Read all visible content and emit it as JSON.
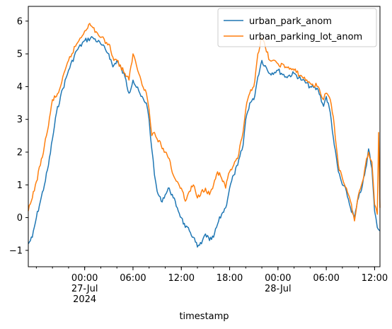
{
  "chart_data": {
    "type": "line",
    "title": "",
    "xlabel": "timestamp",
    "ylabel": "",
    "xlim": [
      "2024-07-26T17:00",
      "2024-07-28T12:40"
    ],
    "ylim": [
      -1.5,
      6.45
    ],
    "grid": false,
    "legend_position": "upper-right",
    "y_ticks": [
      -1,
      0,
      1,
      2,
      3,
      4,
      5,
      6
    ],
    "x_ticks": [
      {
        "t": "2024-07-27T00:00",
        "label": "00:00\n27-Jul\n2024"
      },
      {
        "t": "2024-07-27T06:00",
        "label": "06:00"
      },
      {
        "t": "2024-07-27T12:00",
        "label": "12:00"
      },
      {
        "t": "2024-07-27T18:00",
        "label": "18:00"
      },
      {
        "t": "2024-07-28T00:00",
        "label": "00:00\n28-Jul"
      },
      {
        "t": "2024-07-28T06:00",
        "label": "06:00"
      },
      {
        "t": "2024-07-28T12:00",
        "label": "12:00"
      }
    ],
    "series": [
      {
        "name": "urban_park_anom",
        "color": "#1f77b4",
        "points": [
          [
            "2024-07-26T17:00",
            -0.8
          ],
          [
            "2024-07-26T17:30",
            -0.6
          ],
          [
            "2024-07-26T18:00",
            0.0
          ],
          [
            "2024-07-26T18:30",
            0.5
          ],
          [
            "2024-07-26T19:00",
            1.0
          ],
          [
            "2024-07-26T19:30",
            1.6
          ],
          [
            "2024-07-26T20:00",
            2.4
          ],
          [
            "2024-07-26T20:30",
            3.2
          ],
          [
            "2024-07-26T21:00",
            3.7
          ],
          [
            "2024-07-26T22:00",
            4.5
          ],
          [
            "2024-07-26T23:00",
            5.1
          ],
          [
            "2024-07-27T00:00",
            5.4
          ],
          [
            "2024-07-27T01:00",
            5.5
          ],
          [
            "2024-07-27T02:00",
            5.3
          ],
          [
            "2024-07-27T03:00",
            5.0
          ],
          [
            "2024-07-27T03:30",
            4.6
          ],
          [
            "2024-07-27T04:00",
            4.8
          ],
          [
            "2024-07-27T05:00",
            4.3
          ],
          [
            "2024-07-27T05:30",
            3.8
          ],
          [
            "2024-07-27T06:00",
            4.2
          ],
          [
            "2024-07-27T07:00",
            3.7
          ],
          [
            "2024-07-27T07:40",
            3.5
          ],
          [
            "2024-07-27T08:00",
            3.0
          ],
          [
            "2024-07-27T08:20",
            2.1
          ],
          [
            "2024-07-27T08:40",
            1.3
          ],
          [
            "2024-07-27T09:00",
            0.8
          ],
          [
            "2024-07-27T09:30",
            0.5
          ],
          [
            "2024-07-27T10:00",
            0.7
          ],
          [
            "2024-07-27T10:30",
            0.9
          ],
          [
            "2024-07-27T11:00",
            0.6
          ],
          [
            "2024-07-27T11:30",
            0.3
          ],
          [
            "2024-07-27T12:00",
            0.0
          ],
          [
            "2024-07-27T12:30",
            -0.3
          ],
          [
            "2024-07-27T13:00",
            -0.4
          ],
          [
            "2024-07-27T13:30",
            -0.6
          ],
          [
            "2024-07-27T14:00",
            -0.9
          ],
          [
            "2024-07-27T14:30",
            -0.8
          ],
          [
            "2024-07-27T15:00",
            -0.5
          ],
          [
            "2024-07-27T15:30",
            -0.7
          ],
          [
            "2024-07-27T16:00",
            -0.6
          ],
          [
            "2024-07-27T16:30",
            -0.2
          ],
          [
            "2024-07-27T17:00",
            0.1
          ],
          [
            "2024-07-27T17:30",
            0.3
          ],
          [
            "2024-07-27T18:00",
            0.9
          ],
          [
            "2024-07-27T18:30",
            1.3
          ],
          [
            "2024-07-27T19:00",
            1.6
          ],
          [
            "2024-07-27T19:40",
            2.2
          ],
          [
            "2024-07-27T20:00",
            3.0
          ],
          [
            "2024-07-27T20:30",
            3.5
          ],
          [
            "2024-07-27T21:00",
            3.6
          ],
          [
            "2024-07-27T21:30",
            4.3
          ],
          [
            "2024-07-27T22:00",
            4.8
          ],
          [
            "2024-07-27T23:00",
            4.4
          ],
          [
            "2024-07-28T00:00",
            4.5
          ],
          [
            "2024-07-28T01:00",
            4.3
          ],
          [
            "2024-07-28T02:00",
            4.4
          ],
          [
            "2024-07-28T03:00",
            4.2
          ],
          [
            "2024-07-28T04:00",
            4.0
          ],
          [
            "2024-07-28T05:00",
            3.9
          ],
          [
            "2024-07-28T05:40",
            3.4
          ],
          [
            "2024-07-28T06:00",
            3.7
          ],
          [
            "2024-07-28T06:30",
            3.2
          ],
          [
            "2024-07-28T07:00",
            2.2
          ],
          [
            "2024-07-28T07:30",
            1.4
          ],
          [
            "2024-07-28T08:00",
            1.0
          ],
          [
            "2024-07-28T08:30",
            0.8
          ],
          [
            "2024-07-28T09:00",
            0.3
          ],
          [
            "2024-07-28T09:30",
            0.0
          ],
          [
            "2024-07-28T10:00",
            0.6
          ],
          [
            "2024-07-28T10:30",
            1.0
          ],
          [
            "2024-07-28T11:00",
            1.6
          ],
          [
            "2024-07-28T11:15",
            2.1
          ],
          [
            "2024-07-28T11:40",
            1.5
          ],
          [
            "2024-07-28T12:00",
            0.2
          ],
          [
            "2024-07-28T12:20",
            -0.3
          ],
          [
            "2024-07-28T12:40",
            -0.4
          ]
        ]
      },
      {
        "name": "urban_parking_lot_anom",
        "color": "#ff7f0e",
        "points": [
          [
            "2024-07-26T17:00",
            0.2
          ],
          [
            "2024-07-26T17:30",
            0.6
          ],
          [
            "2024-07-26T18:00",
            1.1
          ],
          [
            "2024-07-26T18:30",
            1.6
          ],
          [
            "2024-07-26T19:00",
            2.2
          ],
          [
            "2024-07-26T19:30",
            2.8
          ],
          [
            "2024-07-26T20:00",
            3.6
          ],
          [
            "2024-07-26T20:30",
            3.7
          ],
          [
            "2024-07-26T21:00",
            4.0
          ],
          [
            "2024-07-26T22:00",
            4.8
          ],
          [
            "2024-07-26T23:00",
            5.3
          ],
          [
            "2024-07-27T00:00",
            5.7
          ],
          [
            "2024-07-27T00:30",
            5.9
          ],
          [
            "2024-07-27T01:00",
            5.8
          ],
          [
            "2024-07-27T02:00",
            5.5
          ],
          [
            "2024-07-27T03:00",
            5.3
          ],
          [
            "2024-07-27T03:30",
            4.9
          ],
          [
            "2024-07-27T04:00",
            4.8
          ],
          [
            "2024-07-27T05:00",
            4.4
          ],
          [
            "2024-07-27T05:30",
            4.2
          ],
          [
            "2024-07-27T06:00",
            5.0
          ],
          [
            "2024-07-27T07:00",
            4.2
          ],
          [
            "2024-07-27T07:40",
            3.8
          ],
          [
            "2024-07-27T08:00",
            3.3
          ],
          [
            "2024-07-27T08:20",
            2.5
          ],
          [
            "2024-07-27T08:40",
            2.6
          ],
          [
            "2024-07-27T09:00",
            2.4
          ],
          [
            "2024-07-27T09:30",
            2.2
          ],
          [
            "2024-07-27T10:00",
            2.0
          ],
          [
            "2024-07-27T10:30",
            1.8
          ],
          [
            "2024-07-27T11:00",
            1.3
          ],
          [
            "2024-07-27T11:30",
            1.1
          ],
          [
            "2024-07-27T12:00",
            0.9
          ],
          [
            "2024-07-27T12:30",
            0.5
          ],
          [
            "2024-07-27T13:00",
            0.8
          ],
          [
            "2024-07-27T13:30",
            1.0
          ],
          [
            "2024-07-27T14:00",
            0.6
          ],
          [
            "2024-07-27T14:30",
            0.8
          ],
          [
            "2024-07-27T15:00",
            0.9
          ],
          [
            "2024-07-27T15:30",
            0.7
          ],
          [
            "2024-07-27T16:00",
            1.0
          ],
          [
            "2024-07-27T16:30",
            1.4
          ],
          [
            "2024-07-27T17:00",
            1.2
          ],
          [
            "2024-07-27T17:30",
            0.9
          ],
          [
            "2024-07-27T18:00",
            1.4
          ],
          [
            "2024-07-27T18:30",
            1.6
          ],
          [
            "2024-07-27T19:00",
            1.8
          ],
          [
            "2024-07-27T19:40",
            2.6
          ],
          [
            "2024-07-27T20:00",
            3.3
          ],
          [
            "2024-07-27T20:30",
            3.8
          ],
          [
            "2024-07-27T21:00",
            4.0
          ],
          [
            "2024-07-27T21:30",
            5.0
          ],
          [
            "2024-07-27T22:00",
            5.5
          ],
          [
            "2024-07-27T23:00",
            4.8
          ],
          [
            "2024-07-28T00:00",
            4.7
          ],
          [
            "2024-07-28T01:00",
            4.6
          ],
          [
            "2024-07-28T02:00",
            4.5
          ],
          [
            "2024-07-28T03:00",
            4.3
          ],
          [
            "2024-07-28T04:00",
            4.1
          ],
          [
            "2024-07-28T05:00",
            4.0
          ],
          [
            "2024-07-28T05:40",
            3.6
          ],
          [
            "2024-07-28T06:00",
            3.8
          ],
          [
            "2024-07-28T06:30",
            3.6
          ],
          [
            "2024-07-28T07:00",
            2.8
          ],
          [
            "2024-07-28T07:30",
            1.6
          ],
          [
            "2024-07-28T08:00",
            1.2
          ],
          [
            "2024-07-28T08:30",
            0.9
          ],
          [
            "2024-07-28T09:00",
            0.5
          ],
          [
            "2024-07-28T09:30",
            -0.1
          ],
          [
            "2024-07-28T10:00",
            0.7
          ],
          [
            "2024-07-28T10:30",
            1.1
          ],
          [
            "2024-07-28T11:00",
            1.8
          ],
          [
            "2024-07-28T11:15",
            2.0
          ],
          [
            "2024-07-28T11:40",
            1.7
          ],
          [
            "2024-07-28T12:00",
            0.4
          ],
          [
            "2024-07-28T12:20",
            0.1
          ],
          [
            "2024-07-28T12:30",
            2.6
          ],
          [
            "2024-07-28T12:40",
            0.3
          ]
        ]
      }
    ]
  }
}
